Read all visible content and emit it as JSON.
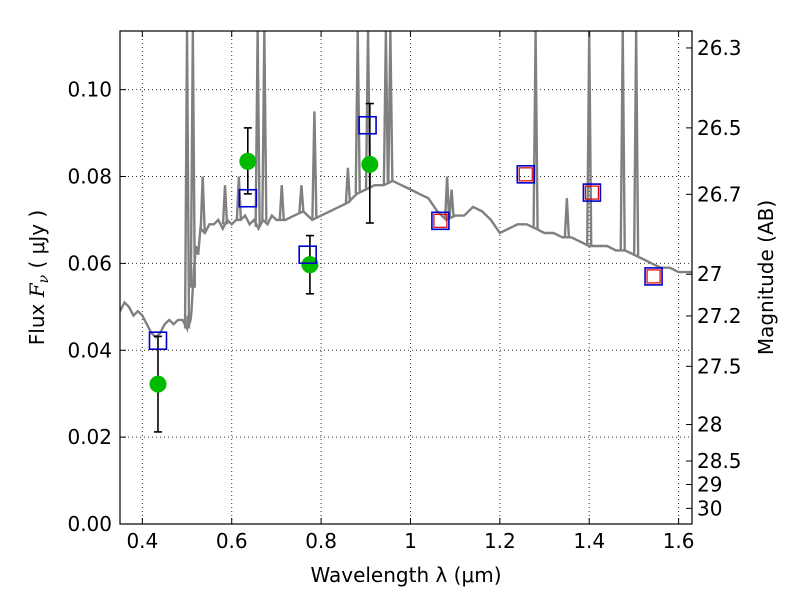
{
  "chart_data": {
    "type": "scatter",
    "title": "",
    "xlabel": "Wavelength  λ (μm)",
    "ylabel": "Flux  F_ν  ( μJy )",
    "ylabel_parts": {
      "prefix": "Flux  ",
      "symbol_main": "F",
      "symbol_sub": "ν",
      "suffix": "  ( μJy )"
    },
    "y2label": "Magnitude (AB)",
    "xlim": [
      0.35,
      1.63
    ],
    "ylim": [
      0.0,
      0.1135
    ],
    "grid": true,
    "x_ticks": [
      {
        "value": 0.4,
        "label": "0.4"
      },
      {
        "value": 0.6,
        "label": "0.6"
      },
      {
        "value": 0.8,
        "label": "0.8"
      },
      {
        "value": 1.0,
        "label": "1"
      },
      {
        "value": 1.2,
        "label": "1.2"
      },
      {
        "value": 1.4,
        "label": "1.4"
      },
      {
        "value": 1.6,
        "label": "1.6"
      }
    ],
    "y_ticks": [
      {
        "value": 0.0,
        "label": "0.00"
      },
      {
        "value": 0.02,
        "label": "0.02"
      },
      {
        "value": 0.04,
        "label": "0.04"
      },
      {
        "value": 0.06,
        "label": "0.06"
      },
      {
        "value": 0.08,
        "label": "0.08"
      },
      {
        "value": 0.1,
        "label": "0.10"
      }
    ],
    "mag_ticks": [
      {
        "label": "26.3",
        "flux": 0.1096
      },
      {
        "label": "26.5",
        "flux": 0.0912
      },
      {
        "label": "26.7",
        "flux": 0.0759
      },
      {
        "label": "27",
        "flux": 0.0575
      },
      {
        "label": "27.2",
        "flux": 0.0479
      },
      {
        "label": "27.5",
        "flux": 0.0363
      },
      {
        "label": "28",
        "flux": 0.0229
      },
      {
        "label": "28.5",
        "flux": 0.0145
      },
      {
        "label": "29",
        "flux": 0.0091
      },
      {
        "label": "30",
        "flux": 0.0036
      }
    ],
    "series": [
      {
        "kind": "model_spectrum",
        "color": "#808080",
        "x": [
          0.35,
          0.36,
          0.37,
          0.38,
          0.39,
          0.4,
          0.41,
          0.42,
          0.43,
          0.44,
          0.45,
          0.46,
          0.47,
          0.48,
          0.49,
          0.5,
          0.502,
          0.505,
          0.508,
          0.51,
          0.515,
          0.52,
          0.525,
          0.53,
          0.54,
          0.55,
          0.56,
          0.57,
          0.58,
          0.59,
          0.6,
          0.61,
          0.62,
          0.63,
          0.64,
          0.65,
          0.66,
          0.67,
          0.68,
          0.69,
          0.7,
          0.72,
          0.74,
          0.76,
          0.78,
          0.8,
          0.82,
          0.84,
          0.86,
          0.88,
          0.9,
          0.92,
          0.94,
          0.96,
          0.98,
          1.0,
          1.02,
          1.04,
          1.06,
          1.08,
          1.1,
          1.12,
          1.14,
          1.16,
          1.18,
          1.2,
          1.22,
          1.24,
          1.26,
          1.28,
          1.3,
          1.32,
          1.34,
          1.36,
          1.38,
          1.4,
          1.42,
          1.44,
          1.46,
          1.48,
          1.5,
          1.52,
          1.54,
          1.56,
          1.58,
          1.6,
          1.63
        ],
        "y": [
          0.049,
          0.051,
          0.05,
          0.048,
          0.049,
          0.048,
          0.046,
          0.044,
          0.043,
          0.044,
          0.046,
          0.047,
          0.046,
          0.047,
          0.047,
          0.045,
          0.048,
          0.046,
          0.047,
          0.049,
          0.058,
          0.064,
          0.062,
          0.068,
          0.067,
          0.069,
          0.069,
          0.07,
          0.068,
          0.07,
          0.069,
          0.07,
          0.07,
          0.071,
          0.069,
          0.07,
          0.068,
          0.07,
          0.069,
          0.071,
          0.07,
          0.07,
          0.071,
          0.072,
          0.07,
          0.071,
          0.072,
          0.073,
          0.074,
          0.076,
          0.077,
          0.078,
          0.078,
          0.079,
          0.078,
          0.077,
          0.076,
          0.075,
          0.072,
          0.07,
          0.071,
          0.071,
          0.073,
          0.072,
          0.07,
          0.067,
          0.068,
          0.069,
          0.069,
          0.068,
          0.067,
          0.067,
          0.066,
          0.066,
          0.065,
          0.064,
          0.064,
          0.064,
          0.063,
          0.063,
          0.062,
          0.061,
          0.06,
          0.059,
          0.059,
          0.058,
          0.058
        ]
      },
      {
        "kind": "emission_lines",
        "color": "#808080",
        "lines": [
          {
            "x": 0.5,
            "top": 0.1135
          },
          {
            "x": 0.513,
            "top": 0.1135
          },
          {
            "x": 0.535,
            "top": 0.08
          },
          {
            "x": 0.585,
            "top": 0.078
          },
          {
            "x": 0.616,
            "top": 0.08
          },
          {
            "x": 0.658,
            "top": 0.1135
          },
          {
            "x": 0.673,
            "top": 0.1135
          },
          {
            "x": 0.712,
            "top": 0.078
          },
          {
            "x": 0.756,
            "top": 0.078
          },
          {
            "x": 0.785,
            "top": 0.095
          },
          {
            "x": 0.86,
            "top": 0.082
          },
          {
            "x": 0.882,
            "top": 0.1135
          },
          {
            "x": 0.905,
            "top": 0.1135
          },
          {
            "x": 0.945,
            "top": 0.1135
          },
          {
            "x": 0.955,
            "top": 0.1135
          },
          {
            "x": 1.082,
            "top": 0.08
          },
          {
            "x": 1.092,
            "top": 0.077
          },
          {
            "x": 1.28,
            "top": 0.1135
          },
          {
            "x": 1.35,
            "top": 0.075
          },
          {
            "x": 1.4,
            "top": 0.1135
          },
          {
            "x": 1.475,
            "top": 0.1135
          },
          {
            "x": 1.505,
            "top": 0.1135
          }
        ]
      },
      {
        "kind": "observed",
        "color": "#00bb00",
        "points": [
          {
            "x": 0.435,
            "y": 0.0322,
            "yerr_low": 0.0212,
            "yerr_high": 0.0432
          },
          {
            "x": 0.636,
            "y": 0.0835,
            "yerr_low": 0.076,
            "yerr_high": 0.0912
          },
          {
            "x": 0.775,
            "y": 0.0597,
            "yerr_low": 0.053,
            "yerr_high": 0.0664
          },
          {
            "x": 0.909,
            "y": 0.0828,
            "yerr_low": 0.0693,
            "yerr_high": 0.0968
          }
        ]
      },
      {
        "kind": "model_photometry",
        "color": "#0000cc",
        "points": [
          {
            "x": 0.435,
            "y": 0.0422
          },
          {
            "x": 0.636,
            "y": 0.075
          },
          {
            "x": 0.77,
            "y": 0.062
          },
          {
            "x": 0.904,
            "y": 0.0918
          },
          {
            "x": 1.067,
            "y": 0.0698
          },
          {
            "x": 1.258,
            "y": 0.0805
          },
          {
            "x": 1.406,
            "y": 0.0763
          },
          {
            "x": 1.544,
            "y": 0.057
          }
        ]
      },
      {
        "kind": "model_photometry_inner",
        "color": "#dd0000",
        "points": [
          {
            "x": 1.067,
            "y": 0.0698
          },
          {
            "x": 1.258,
            "y": 0.0805
          },
          {
            "x": 1.406,
            "y": 0.0763
          },
          {
            "x": 1.544,
            "y": 0.057
          }
        ]
      }
    ]
  }
}
